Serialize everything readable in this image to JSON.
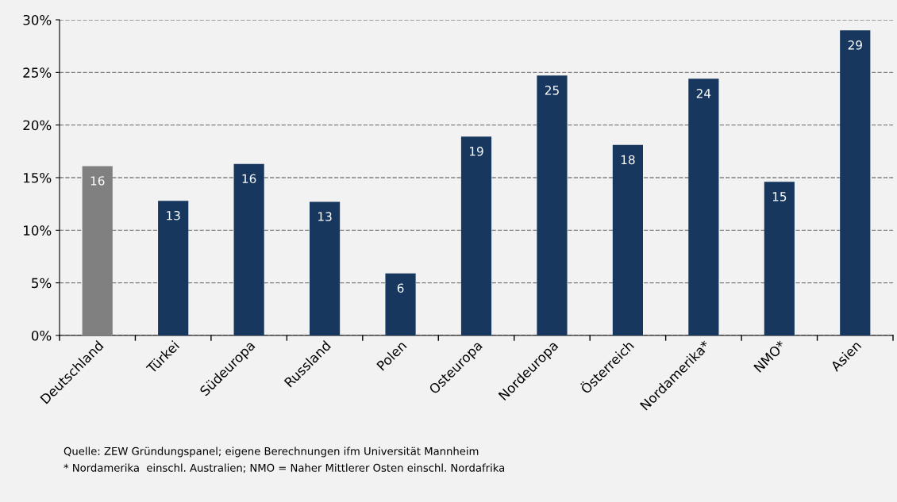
{
  "chart_data": {
    "type": "bar",
    "categories": [
      "Deutschland",
      "Türkei",
      "Südeuropa",
      "Russland",
      "Polen",
      "Osteuropa",
      "Nordeuropa",
      "Österreich",
      "Nordamerika*",
      "NMO*",
      "Asien"
    ],
    "values": [
      16.1,
      12.8,
      16.3,
      12.7,
      5.9,
      18.9,
      24.7,
      18.1,
      24.4,
      14.6,
      29.0
    ],
    "colors": [
      "#808080",
      "#17375e",
      "#17375e",
      "#17375e",
      "#17375e",
      "#17375e",
      "#17375e",
      "#17375e",
      "#17375e",
      "#17375e",
      "#17375e"
    ],
    "value_labels": [
      "16",
      "13",
      "16",
      "13",
      "6",
      "19",
      "25",
      "18",
      "24",
      "15",
      "29"
    ],
    "ylim": [
      0,
      30
    ],
    "yticks": [
      {
        "value": 0,
        "label": "0%"
      },
      {
        "value": 5,
        "label": "5%"
      },
      {
        "value": 10,
        "label": "10%"
      },
      {
        "value": 15,
        "label": "15%"
      },
      {
        "value": 20,
        "label": "20%"
      },
      {
        "value": 25,
        "label": "25%"
      },
      {
        "value": 30,
        "label": "30%"
      }
    ],
    "grid": "y",
    "annotations": [
      "Quelle: ZEW Gründungspanel; eigene Berechnungen ifm Universität Mannheim",
      "* Nordamerika  einschl. Australien; NMO = Naher Mittlerer Osten einschl. Nordafrika"
    ]
  }
}
